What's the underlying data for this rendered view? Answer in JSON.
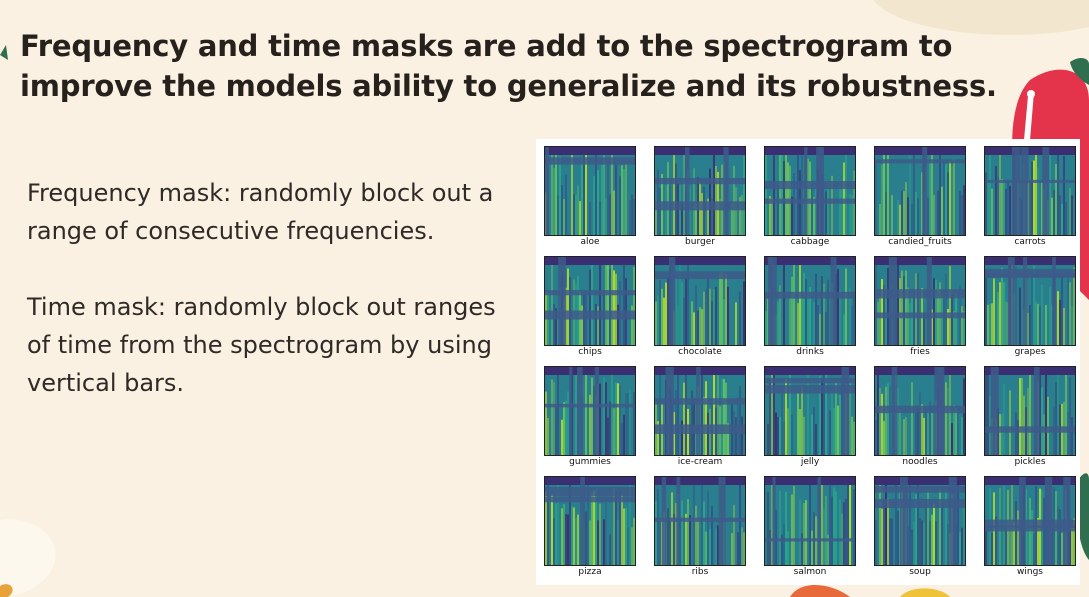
{
  "title": "Frequency and time masks are add to the spectrogram to improve the models ability to generalize and its robustness.",
  "paragraphs": [
    "Frequency mask: randomly block out a range of consecutive frequencies.",
    "Time mask: randomly block out ranges of time from the spectrogram by using vertical bars."
  ],
  "spectrograms": [
    {
      "label": "aloe"
    },
    {
      "label": "burger"
    },
    {
      "label": "cabbage"
    },
    {
      "label": "candied_fruits"
    },
    {
      "label": "carrots"
    },
    {
      "label": "chips"
    },
    {
      "label": "chocolate"
    },
    {
      "label": "drinks"
    },
    {
      "label": "fries"
    },
    {
      "label": "grapes"
    },
    {
      "label": "gummies"
    },
    {
      "label": "ice-cream"
    },
    {
      "label": "jelly"
    },
    {
      "label": "noodles"
    },
    {
      "label": "pickles"
    },
    {
      "label": "pizza"
    },
    {
      "label": "ribs"
    },
    {
      "label": "salmon"
    },
    {
      "label": "soup"
    },
    {
      "label": "wings"
    }
  ],
  "colors": {
    "background": "#faf1e2",
    "spectrogram_dark": "#3b2f73",
    "spectrogram_mid": "#2a7f8e",
    "spectrogram_bright": "#b5de2b",
    "mask": "#3d5a8a"
  }
}
